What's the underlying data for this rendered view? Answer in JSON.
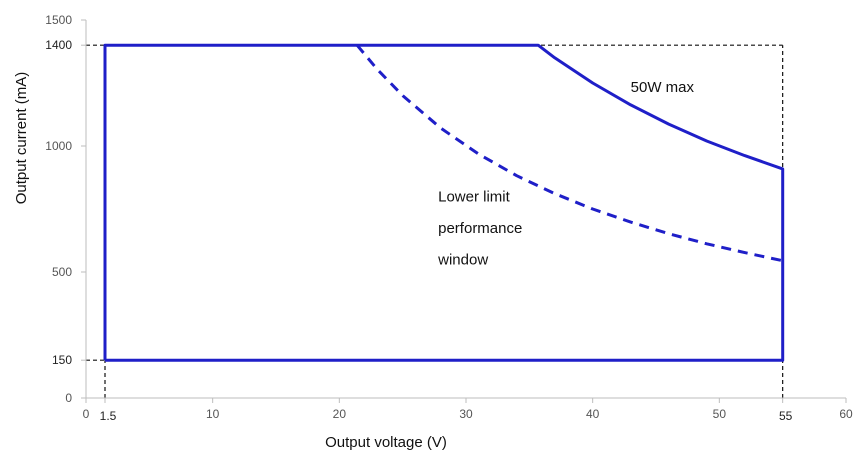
{
  "chart_data": {
    "type": "line",
    "xlabel": "Output voltage (V)",
    "ylabel": "Output current (mA)",
    "xlim": [
      0,
      60
    ],
    "ylim": [
      0,
      1500
    ],
    "x_ticks": [
      0,
      10,
      20,
      30,
      40,
      50,
      60
    ],
    "y_ticks": [
      0,
      500,
      1000,
      1500
    ],
    "marker_x_ticks": [
      1.5,
      55
    ],
    "marker_y_ticks": [
      150,
      1400
    ],
    "grid": false,
    "legend": "none",
    "series": [
      {
        "style": "solid",
        "color": "#1f1fc8",
        "points": [
          [
            1.5,
            150
          ],
          [
            1.5,
            1400
          ],
          [
            35.7,
            1400
          ],
          [
            37,
            1350
          ],
          [
            40,
            1250
          ],
          [
            43,
            1163
          ],
          [
            46,
            1087
          ],
          [
            49,
            1020
          ],
          [
            52,
            962
          ],
          [
            55,
            909
          ],
          [
            55,
            150
          ],
          [
            1.5,
            150
          ]
        ]
      },
      {
        "style": "dashed",
        "color": "#1f1fc8",
        "points": [
          [
            21.4,
            1400
          ],
          [
            23,
            1304
          ],
          [
            25,
            1200
          ],
          [
            28,
            1071
          ],
          [
            31,
            968
          ],
          [
            34,
            882
          ],
          [
            37,
            811
          ],
          [
            40,
            750
          ],
          [
            43,
            698
          ],
          [
            46,
            652
          ],
          [
            49,
            612
          ],
          [
            52,
            577
          ],
          [
            55,
            545
          ]
        ]
      }
    ],
    "reference_lines": [
      {
        "type": "h",
        "y": 1400,
        "x_from": 0,
        "x_to": 55
      },
      {
        "type": "h",
        "y": 150,
        "x_from": 0,
        "x_to": 1.5
      },
      {
        "type": "v",
        "x": 1.5,
        "y_from": 0,
        "y_to": 150
      },
      {
        "type": "v",
        "x": 55,
        "y_from": 0,
        "y_to": 1400
      }
    ],
    "annotations": [
      {
        "text": "50W max",
        "x": 43,
        "y": 1215
      },
      {
        "text": "Lower limit",
        "x": 27.8,
        "y": 780
      },
      {
        "text": "performance",
        "x": 27.8,
        "y": 655
      },
      {
        "text": "window",
        "x": 27.8,
        "y": 530
      }
    ]
  }
}
